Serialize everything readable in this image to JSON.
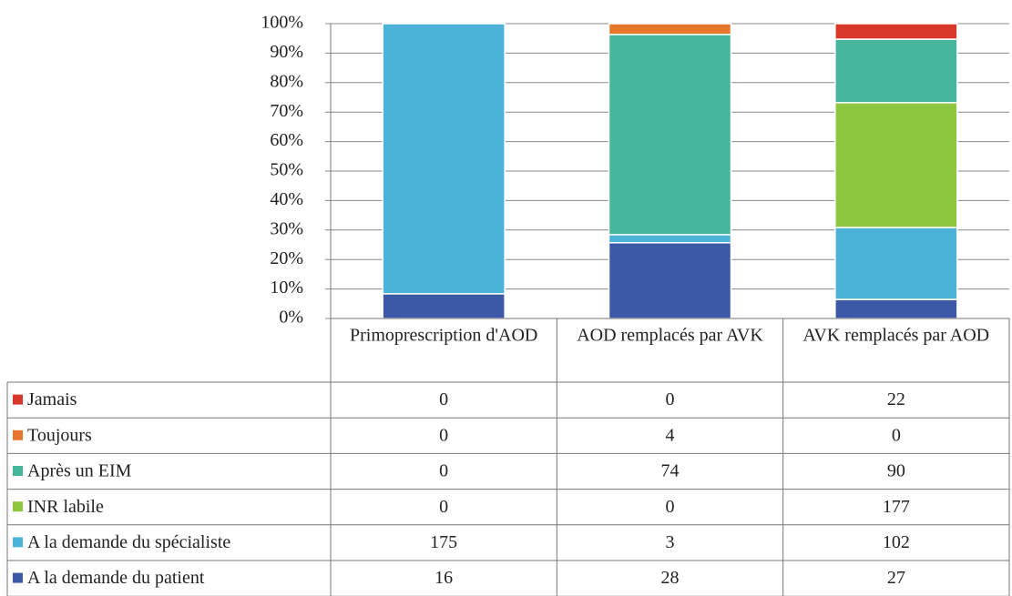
{
  "chart_data": {
    "type": "stacked-percent-bar",
    "categories": [
      "Primoprescription d'AOD",
      "AOD remplacés par AVK",
      "AVK remplacés par AOD"
    ],
    "series": [
      {
        "name": "Jamais",
        "color": "#d9372a",
        "values": [
          0,
          0,
          22
        ]
      },
      {
        "name": "Toujours",
        "color": "#e8772e",
        "values": [
          0,
          4,
          0
        ]
      },
      {
        "name": "Après un EIM",
        "color": "#45b69c",
        "values": [
          0,
          74,
          90
        ]
      },
      {
        "name": "INR labile",
        "color": "#8dc63f",
        "values": [
          0,
          0,
          177
        ]
      },
      {
        "name": "A la demande du spécialiste",
        "color": "#4bb3d8",
        "values": [
          175,
          3,
          102
        ]
      },
      {
        "name": "A la demande du patient",
        "color": "#3c59a8",
        "values": [
          16,
          28,
          27
        ]
      }
    ],
    "ylim": [
      0,
      100
    ],
    "yticks": [
      {
        "value": 0,
        "label": "0%"
      },
      {
        "value": 10,
        "label": "10%"
      },
      {
        "value": 20,
        "label": "20%"
      },
      {
        "value": 30,
        "label": "30%"
      },
      {
        "value": 40,
        "label": "40%"
      },
      {
        "value": 50,
        "label": "50%"
      },
      {
        "value": 60,
        "label": "60%"
      },
      {
        "value": 70,
        "label": "70%"
      },
      {
        "value": 80,
        "label": "80%"
      },
      {
        "value": 90,
        "label": "90%"
      },
      {
        "value": 100,
        "label": "100%"
      }
    ],
    "grid": true
  }
}
